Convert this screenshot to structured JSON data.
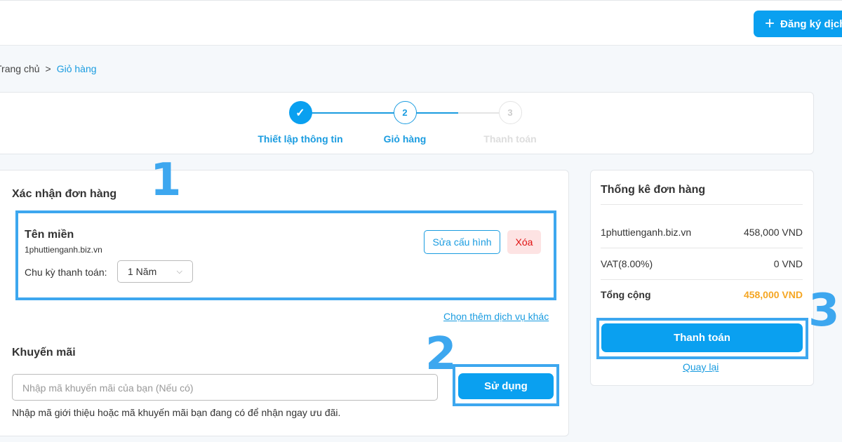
{
  "header": {
    "register_button": "Đăng ký dịch",
    "plus_icon": "+"
  },
  "breadcrumb": {
    "home": "Trang chủ",
    "separator": ">",
    "current": "Giỏ hàng"
  },
  "steps": [
    {
      "label": "Thiết lập thông tin",
      "marker": "✓",
      "state": "done"
    },
    {
      "label": "Giỏ hàng",
      "marker": "2",
      "state": "active"
    },
    {
      "label": "Thanh toán",
      "marker": "3",
      "state": "pending"
    }
  ],
  "order": {
    "title": "Xác nhận đơn hàng",
    "item": {
      "name": "Tên miền",
      "domain": "1phuttienganh.biz.vn",
      "cycle_label": "Chu kỳ thanh toán:",
      "cycle_value": "1 Năm",
      "edit_button": "Sửa cấu hình",
      "delete_button": "Xóa"
    },
    "more_link": "Chọn thêm dịch vụ khác"
  },
  "promo": {
    "title": "Khuyến mãi",
    "placeholder": "Nhập mã khuyến mãi của bạn (Nếu có)",
    "apply_button": "Sử dụng",
    "hint": "Nhập mã giới thiệu hoặc mã khuyến mãi bạn đang có để nhận ngay ưu đãi."
  },
  "summary": {
    "title": "Thống kê đơn hàng",
    "lines": [
      {
        "label": "1phuttienganh.biz.vn",
        "value": "458,000 VND"
      },
      {
        "label": "VAT(8.00%)",
        "value": "0 VND"
      }
    ],
    "total_label": "Tổng cộng",
    "total_value": "458,000 VND",
    "pay_button": "Thanh toán",
    "back_link": "Quay lại"
  },
  "annotations": [
    "1",
    "2",
    "3"
  ],
  "colors": {
    "accent": "#0aa0f0",
    "highlight": "#3da7ef",
    "total": "#f5a623",
    "danger": "#e01010"
  }
}
